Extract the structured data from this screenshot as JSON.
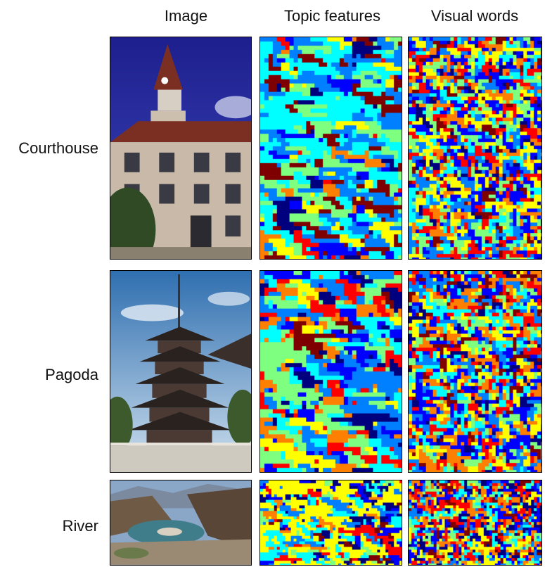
{
  "columns": [
    "Image",
    "Topic features",
    "Visual words"
  ],
  "rows": [
    {
      "label": "Courthouse"
    },
    {
      "label": "Pagoda"
    },
    {
      "label": "River"
    }
  ],
  "colors": {
    "jet": [
      "#00007f",
      "#0000ff",
      "#007fff",
      "#00ffff",
      "#7fff7f",
      "#ffff00",
      "#ff7f00",
      "#ff0000",
      "#7f0000"
    ],
    "sky_courthouse": "#2a2fa8",
    "sky_pagoda": "#a9c8e6",
    "brick": "#c8b9a8",
    "roof_red": "#7a2f22",
    "tree_green": "#3c5a2c",
    "water": "#3f7d8a",
    "rock": "#6f5a46"
  }
}
